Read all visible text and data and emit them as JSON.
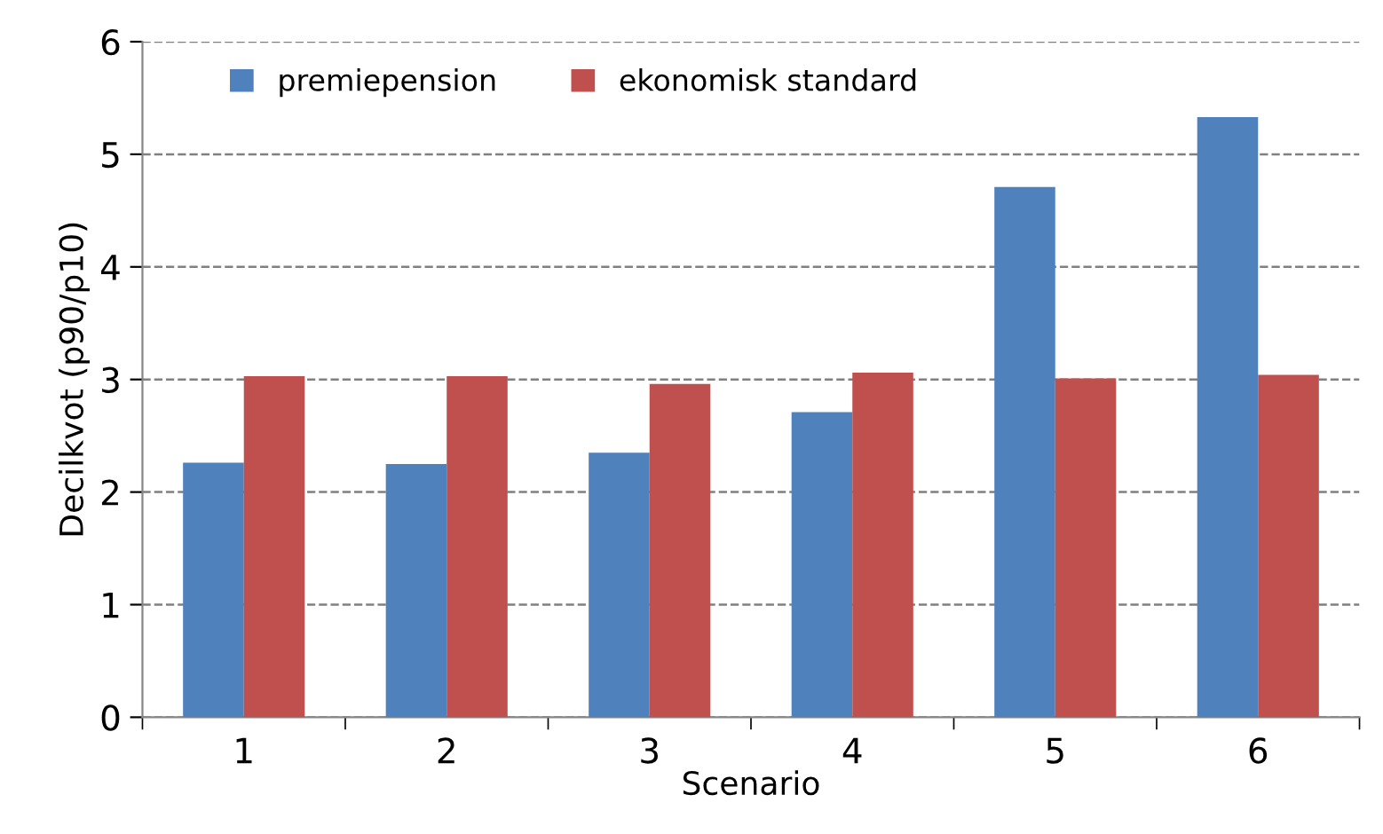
{
  "chart_data": {
    "type": "bar",
    "xlabel": "Scenario",
    "ylabel": "Decilkvot (p90/p10)",
    "categories": [
      "1",
      "2",
      "3",
      "4",
      "5",
      "6"
    ],
    "series": [
      {
        "name": "premiepension",
        "color": "#4f81bd",
        "values": [
          2.26,
          2.25,
          2.35,
          2.71,
          4.71,
          5.33
        ]
      },
      {
        "name": "ekonomisk standard",
        "color": "#c0504d",
        "values": [
          3.03,
          3.03,
          2.96,
          3.06,
          3.01,
          3.04
        ]
      }
    ],
    "ylim": [
      0,
      6
    ],
    "yticks": [
      0,
      1,
      2,
      3,
      4,
      5,
      6
    ],
    "grid": "y",
    "legend": "top left"
  }
}
